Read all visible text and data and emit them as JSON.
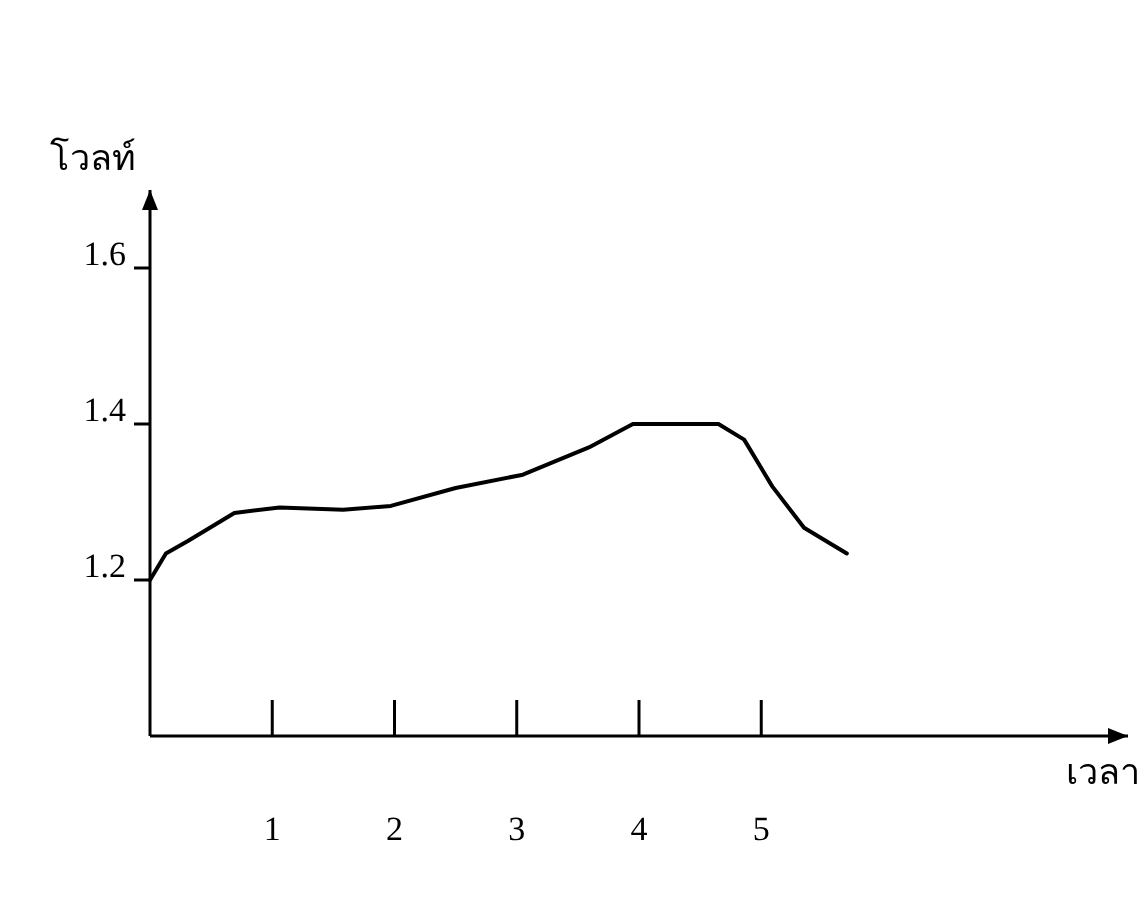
{
  "chart_data": {
    "type": "line",
    "xlabel": "เวลา",
    "ylabel": "โวลท์",
    "x": [
      0,
      0.13,
      0.31,
      0.69,
      1.06,
      1.58,
      1.97,
      2.5,
      3.05,
      3.59,
      3.95,
      4.65,
      4.86,
      5.09,
      5.35,
      5.7
    ],
    "series": [
      {
        "color": "#000000",
        "values": [
          1.2,
          1.234,
          1.25,
          1.286,
          1.293,
          1.29,
          1.295,
          1.318,
          1.335,
          1.37,
          1.4,
          1.4,
          1.38,
          1.32,
          1.267,
          1.234
        ]
      }
    ],
    "xlim": [
      0,
      8
    ],
    "xticks": [
      1,
      2,
      3,
      4,
      5
    ],
    "ylim": [
      1.0,
      1.7
    ],
    "yticks": [
      1.2,
      1.4,
      1.6
    ],
    "grid": false,
    "marker": "none",
    "line_style": "solid"
  }
}
